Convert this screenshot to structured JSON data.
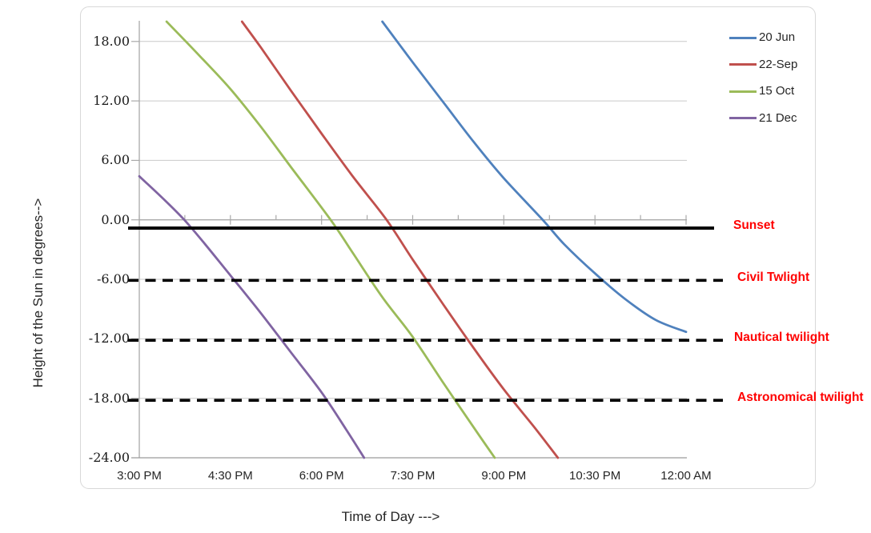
{
  "chart_data": {
    "type": "line",
    "title": "",
    "xlabel": "Time of Day --->",
    "ylabel": "Height of the Sun in degrees-->",
    "x_unit": "decimal hours, 24h clock",
    "y_unit": "degrees above horizon",
    "xlim": [
      15,
      24
    ],
    "ylim": [
      -24,
      20
    ],
    "grid": "horizontal major gridlines on",
    "legend_position": "top-right inside plot",
    "x_axis": {
      "title": "Time of Day --->",
      "tick_values": [
        15,
        16.5,
        18,
        19.5,
        21,
        22.5,
        24
      ],
      "tick_labels": [
        "3:00 PM",
        "4:30 PM",
        "6:00 PM",
        "7:30 PM",
        "9:00 PM",
        "10:30 PM",
        "12:00 AM"
      ],
      "minor_tick_values": [
        15.75,
        17.25,
        18.75,
        20.25,
        21.75,
        23.25
      ]
    },
    "y_axis": {
      "title": "Height of the Sun in degrees-->",
      "tick_values": [
        18,
        12,
        6,
        0,
        -6,
        -12,
        -18,
        -24
      ],
      "tick_labels": [
        "18.00",
        "12.00",
        "6.00",
        "0.00",
        "-6.00",
        "-12.00",
        "-18.00",
        "-24.00"
      ]
    },
    "series": [
      {
        "name": "20 Jun",
        "color": "#4F81BD",
        "points": [
          [
            19.0,
            20
          ],
          [
            19.5,
            15.9
          ],
          [
            20.0,
            11.9
          ],
          [
            20.5,
            7.9
          ],
          [
            21.0,
            4.2
          ],
          [
            21.64,
            0
          ],
          [
            22.0,
            -2.5
          ],
          [
            22.5,
            -5.4
          ],
          [
            23.0,
            -8.0
          ],
          [
            23.5,
            -10.1
          ],
          [
            24.0,
            -11.3
          ]
        ]
      },
      {
        "name": "22-Sep",
        "color": "#C0504D",
        "points": [
          [
            16.69,
            20
          ],
          [
            17.0,
            17.4
          ],
          [
            17.5,
            13.0
          ],
          [
            18.0,
            8.7
          ],
          [
            18.5,
            4.5
          ],
          [
            19.07,
            0
          ],
          [
            19.5,
            -4.0
          ],
          [
            20.0,
            -8.5
          ],
          [
            20.5,
            -12.9
          ],
          [
            21.0,
            -17.1
          ],
          [
            21.5,
            -20.9
          ],
          [
            21.89,
            -24
          ]
        ]
      },
      {
        "name": "15 Oct",
        "color": "#9BBB59",
        "points": [
          [
            15.45,
            20
          ],
          [
            16.0,
            16.5
          ],
          [
            16.5,
            13.2
          ],
          [
            17.0,
            9.4
          ],
          [
            17.5,
            5.3
          ],
          [
            18.15,
            0
          ],
          [
            18.5,
            -3.2
          ],
          [
            19.0,
            -7.8
          ],
          [
            19.5,
            -11.8
          ],
          [
            20.0,
            -16.4
          ],
          [
            20.5,
            -20.9
          ],
          [
            20.85,
            -24
          ]
        ]
      },
      {
        "name": "21 Dec",
        "color": "#8064A2",
        "points": [
          [
            15.0,
            4.4
          ],
          [
            15.74,
            0
          ],
          [
            16.5,
            -5.6
          ],
          [
            17.0,
            -9.4
          ],
          [
            17.5,
            -13.4
          ],
          [
            18.0,
            -17.4
          ],
          [
            18.4,
            -21.1
          ],
          [
            18.7,
            -24
          ]
        ]
      }
    ],
    "reference_lines": [
      {
        "label": "Sunset",
        "value": -0.83,
        "style": "solid",
        "color": "#000000"
      },
      {
        "label": "Civil Twlight",
        "value": -6.1,
        "style": "dashed",
        "color": "#000000"
      },
      {
        "label": "Nautical twilight",
        "value": -12.15,
        "style": "dashed",
        "color": "#000000"
      },
      {
        "label": "Astronomical twilight",
        "value": -18.2,
        "style": "dashed",
        "color": "#000000"
      }
    ],
    "annotation_color": "#FF0000",
    "gridline_color": "#C9C9C9",
    "axis_line_color": "#A9A9A9"
  }
}
